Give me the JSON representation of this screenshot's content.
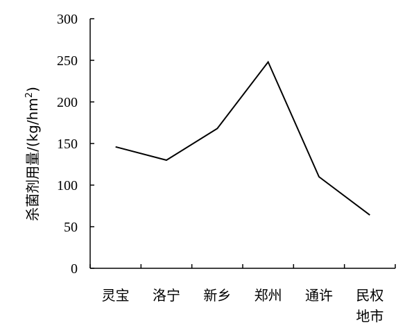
{
  "chart_data": {
    "type": "line",
    "categories": [
      [
        "灵宝"
      ],
      [
        "洛宁"
      ],
      [
        "新乡"
      ],
      [
        "郑州"
      ],
      [
        "通许"
      ],
      [
        "民权",
        "地市"
      ]
    ],
    "values": [
      146,
      130,
      168,
      248,
      110,
      64
    ],
    "ylabel_main": "杀菌剂用量/(kg/hm",
    "ylabel_sup": "2",
    "ylabel_close": ")",
    "ylim": [
      0,
      300
    ],
    "yticks": [
      0,
      50,
      100,
      150,
      200,
      250,
      300
    ],
    "grid": false,
    "legend": "none"
  }
}
